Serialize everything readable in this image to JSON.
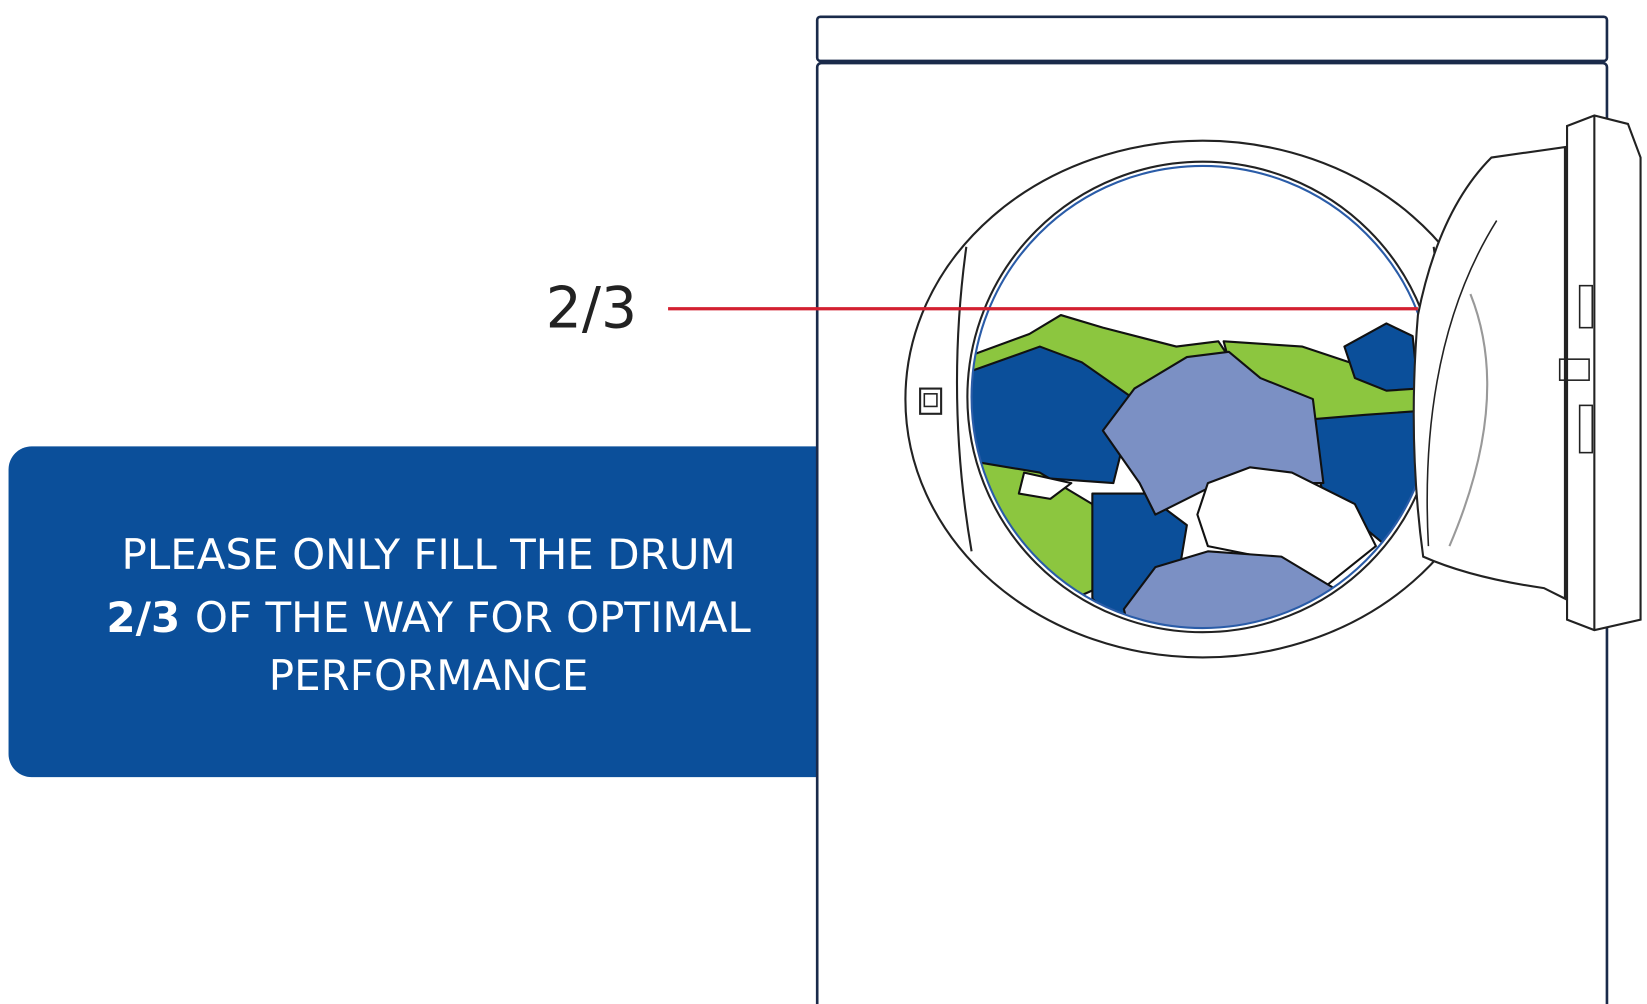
{
  "level_label": "2/3",
  "message": {
    "line1": "PLEASE ONLY FILL THE DRUM",
    "emphasis": "2/3",
    "line2": "OF THE WAY FOR OPTIMAL",
    "line3": "PERFORMANCE"
  }
}
